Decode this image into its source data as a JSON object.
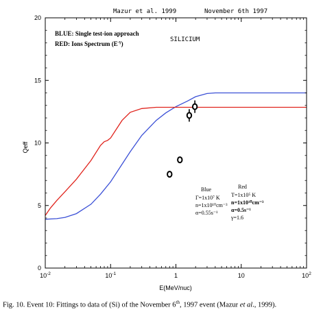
{
  "header": {
    "left": "Mazur et al. 1999",
    "right": "November 6th 1997"
  },
  "legend_text": {
    "blue": "BLUE: Single test-ion approach",
    "red": "RED: Ions Spectrum (E",
    "red_exp": "-γ",
    "red_close": ")"
  },
  "element_label": "SILICIUM",
  "params": {
    "blue": {
      "title": "Blue",
      "lines": [
        "Γ=1x10⁷ K",
        "n=1x10¹⁰cm⁻³",
        "α=0.55s⁻¹"
      ]
    },
    "red": {
      "title": "Red",
      "lines": [
        "T=1x10⁵ K",
        "n=1x10¹⁰cm⁻³",
        "α=0.5s⁻¹",
        "γ=1.6"
      ]
    }
  },
  "caption": {
    "prefix": "Fig. 10. Event 10: Fittings to data of (Si) of the November 6",
    "sup": "th",
    "mid": ", 1997 event (Mazur ",
    "etal": "et al",
    "suffix": "., 1999)."
  },
  "colors": {
    "blue": "#3a4fd6",
    "red": "#e0231c",
    "data": "#000000"
  },
  "chart_data": {
    "type": "line",
    "xlabel": "E(MeV/nuc)",
    "ylabel": "Qeff",
    "x_scale": "log",
    "xlim": [
      0.01,
      100
    ],
    "ylim": [
      0,
      20
    ],
    "x_ticks": [
      {
        "value": 0.01,
        "base": "10",
        "exp": "-2"
      },
      {
        "value": 0.1,
        "base": "10",
        "exp": "-1"
      },
      {
        "value": 1,
        "base": "1",
        "exp": ""
      },
      {
        "value": 10,
        "base": "10",
        "exp": ""
      },
      {
        "value": 100,
        "base": "10",
        "exp": "2"
      }
    ],
    "y_ticks": [
      0,
      5,
      10,
      15,
      20
    ],
    "series": [
      {
        "name": "BLUE",
        "color": "#3a4fd6",
        "points": [
          [
            0.01,
            3.9
          ],
          [
            0.015,
            3.95
          ],
          [
            0.02,
            4.05
          ],
          [
            0.03,
            4.35
          ],
          [
            0.05,
            5.1
          ],
          [
            0.07,
            5.9
          ],
          [
            0.1,
            6.9
          ],
          [
            0.15,
            8.3
          ],
          [
            0.2,
            9.3
          ],
          [
            0.3,
            10.6
          ],
          [
            0.5,
            11.8
          ],
          [
            0.7,
            12.4
          ],
          [
            1.0,
            12.9
          ],
          [
            1.5,
            13.35
          ],
          [
            2.0,
            13.7
          ],
          [
            3.0,
            13.95
          ],
          [
            4.0,
            14.0
          ],
          [
            10,
            14.0
          ],
          [
            100,
            14.0
          ]
        ]
      },
      {
        "name": "RED",
        "color": "#e0231c",
        "points": [
          [
            0.01,
            4.2
          ],
          [
            0.012,
            4.8
          ],
          [
            0.015,
            5.4
          ],
          [
            0.02,
            6.1
          ],
          [
            0.03,
            7.1
          ],
          [
            0.05,
            8.6
          ],
          [
            0.07,
            9.8
          ],
          [
            0.08,
            10.1
          ],
          [
            0.09,
            10.2
          ],
          [
            0.1,
            10.4
          ],
          [
            0.15,
            11.8
          ],
          [
            0.2,
            12.45
          ],
          [
            0.3,
            12.75
          ],
          [
            0.5,
            12.85
          ],
          [
            1.0,
            12.85
          ],
          [
            100,
            12.85
          ]
        ]
      },
      {
        "name": "data",
        "type": "scatter",
        "points": [
          {
            "x": 0.8,
            "y": 7.5,
            "err": 0.25
          },
          {
            "x": 1.15,
            "y": 8.65,
            "err": 0.25
          },
          {
            "x": 1.6,
            "y": 12.2,
            "err": 0.5
          },
          {
            "x": 1.95,
            "y": 12.9,
            "err": 0.5
          }
        ]
      }
    ]
  }
}
